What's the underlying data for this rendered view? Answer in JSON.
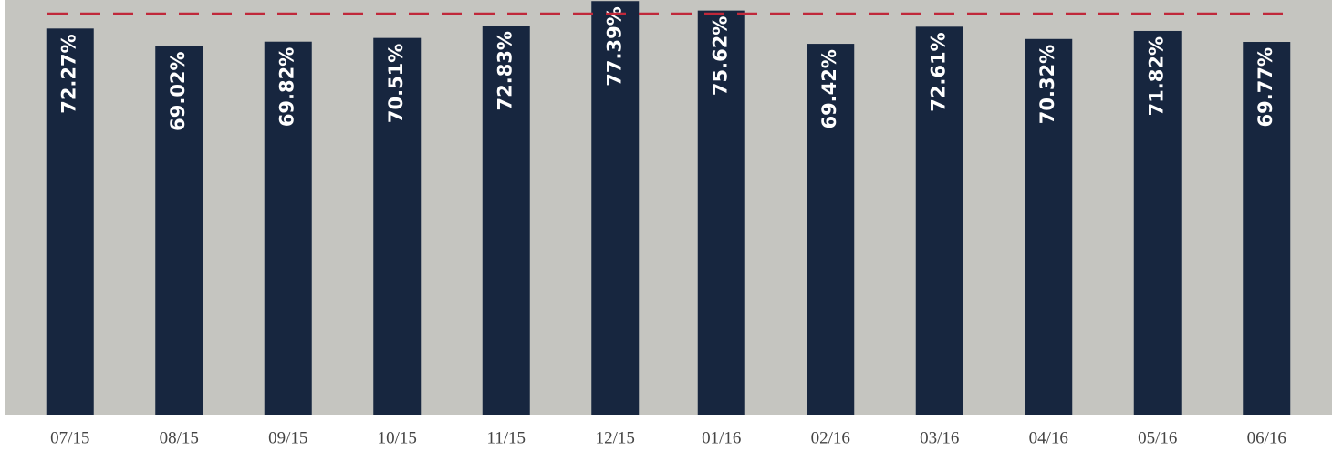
{
  "chart_data": {
    "type": "bar",
    "categories": [
      "07/15",
      "08/15",
      "09/15",
      "10/15",
      "11/15",
      "12/15",
      "01/16",
      "02/16",
      "03/16",
      "04/16",
      "05/16",
      "06/16"
    ],
    "values": [
      72.27,
      69.02,
      69.82,
      70.51,
      72.83,
      77.39,
      75.62,
      69.42,
      72.61,
      70.32,
      71.82,
      69.77
    ],
    "value_labels": [
      "72.27%",
      "69.02%",
      "69.82%",
      "70.51%",
      "72.83%",
      "77.39%",
      "75.62%",
      "69.42%",
      "72.61%",
      "70.32%",
      "71.82%",
      "69.77%"
    ],
    "color": "#17263f",
    "background": "#c5c5c0",
    "target": 75,
    "target_color": "#c0283a",
    "ylim": [
      0,
      77.6
    ]
  }
}
